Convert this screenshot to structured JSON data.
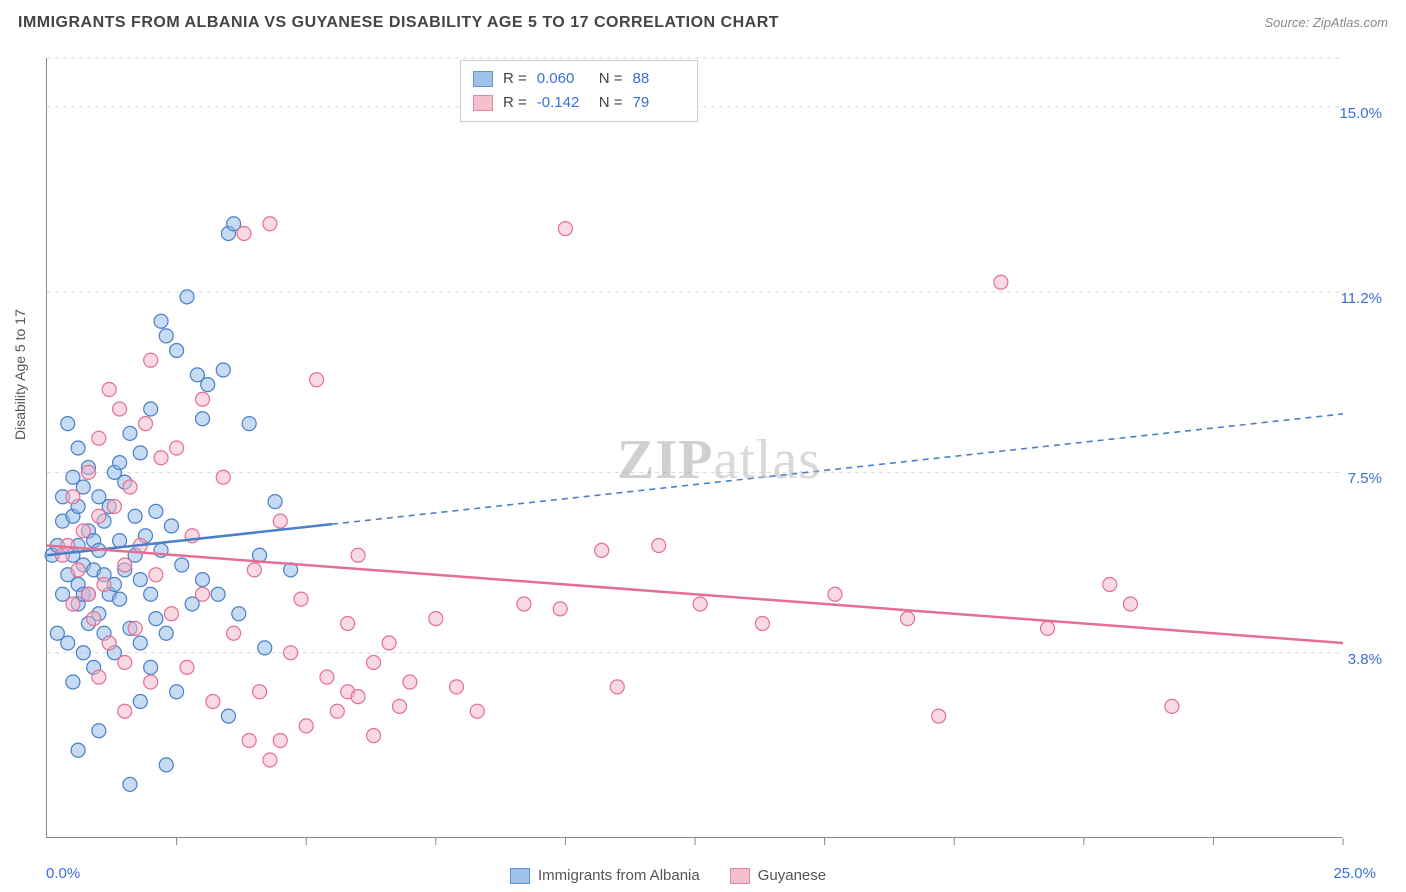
{
  "header": {
    "title": "IMMIGRANTS FROM ALBANIA VS GUYANESE DISABILITY AGE 5 TO 17 CORRELATION CHART",
    "source": "Source: ZipAtlas.com"
  },
  "watermark": {
    "zip": "ZIP",
    "atlas": "atlas"
  },
  "chart": {
    "type": "scatter",
    "background_color": "#ffffff",
    "grid_color": "#d8d8d8",
    "axis": {
      "x": {
        "min": 0.0,
        "max": 25.0,
        "label_min": "0.0%",
        "label_max": "25.0%",
        "ticks_count": 10
      },
      "y": {
        "min": 0.0,
        "max": 16.0,
        "label": "Disability Age 5 to 17",
        "gridlines": [
          {
            "value": 3.8,
            "label": "3.8%"
          },
          {
            "value": 7.5,
            "label": "7.5%"
          },
          {
            "value": 11.2,
            "label": "11.2%"
          },
          {
            "value": 15.0,
            "label": "15.0%"
          }
        ]
      }
    },
    "series": [
      {
        "id": "albania",
        "name": "Immigrants from Albania",
        "color_fill": "#8fb8e8",
        "color_stroke": "#4a7fc9",
        "fill_opacity": 0.5,
        "marker_radius": 7,
        "R": "0.060",
        "N": "88",
        "trend": {
          "y_at_xmin": 5.8,
          "y_at_xmax": 8.7,
          "solid_until_x": 5.5,
          "stroke_width": 2.5,
          "dash": "6 5"
        },
        "points": [
          [
            0.1,
            5.8
          ],
          [
            0.2,
            4.2
          ],
          [
            0.2,
            6.0
          ],
          [
            0.3,
            5.0
          ],
          [
            0.3,
            6.5
          ],
          [
            0.3,
            7.0
          ],
          [
            0.4,
            4.0
          ],
          [
            0.4,
            5.4
          ],
          [
            0.4,
            8.5
          ],
          [
            0.5,
            3.2
          ],
          [
            0.5,
            5.8
          ],
          [
            0.5,
            6.6
          ],
          [
            0.5,
            7.4
          ],
          [
            0.6,
            4.8
          ],
          [
            0.6,
            5.2
          ],
          [
            0.6,
            6.0
          ],
          [
            0.6,
            6.8
          ],
          [
            0.6,
            8.0
          ],
          [
            0.7,
            3.8
          ],
          [
            0.7,
            5.0
          ],
          [
            0.7,
            5.6
          ],
          [
            0.7,
            7.2
          ],
          [
            0.8,
            4.4
          ],
          [
            0.8,
            5.0
          ],
          [
            0.8,
            6.3
          ],
          [
            0.8,
            7.6
          ],
          [
            0.9,
            3.5
          ],
          [
            0.9,
            5.5
          ],
          [
            0.9,
            6.1
          ],
          [
            1.0,
            4.6
          ],
          [
            1.0,
            5.9
          ],
          [
            1.0,
            7.0
          ],
          [
            1.1,
            4.2
          ],
          [
            1.1,
            5.4
          ],
          [
            1.1,
            6.5
          ],
          [
            1.2,
            5.0
          ],
          [
            1.2,
            6.8
          ],
          [
            1.3,
            3.8
          ],
          [
            1.3,
            5.2
          ],
          [
            1.3,
            7.5
          ],
          [
            1.4,
            7.7
          ],
          [
            1.4,
            4.9
          ],
          [
            1.4,
            6.1
          ],
          [
            1.5,
            5.5
          ],
          [
            1.5,
            7.3
          ],
          [
            1.6,
            4.3
          ],
          [
            1.6,
            8.3
          ],
          [
            1.7,
            5.8
          ],
          [
            1.7,
            6.6
          ],
          [
            1.8,
            4.0
          ],
          [
            1.8,
            5.3
          ],
          [
            1.8,
            7.9
          ],
          [
            1.9,
            6.2
          ],
          [
            2.0,
            3.5
          ],
          [
            2.0,
            5.0
          ],
          [
            2.0,
            8.8
          ],
          [
            2.1,
            4.5
          ],
          [
            2.1,
            6.7
          ],
          [
            2.2,
            10.6
          ],
          [
            2.2,
            5.9
          ],
          [
            2.3,
            10.3
          ],
          [
            2.3,
            4.2
          ],
          [
            2.4,
            6.4
          ],
          [
            2.5,
            10.0
          ],
          [
            2.5,
            3.0
          ],
          [
            2.6,
            5.6
          ],
          [
            2.7,
            11.1
          ],
          [
            2.8,
            4.8
          ],
          [
            2.9,
            9.5
          ],
          [
            3.0,
            8.6
          ],
          [
            3.0,
            5.3
          ],
          [
            3.1,
            9.3
          ],
          [
            3.3,
            5.0
          ],
          [
            3.4,
            9.6
          ],
          [
            3.5,
            2.5
          ],
          [
            3.5,
            12.4
          ],
          [
            3.6,
            12.6
          ],
          [
            3.7,
            4.6
          ],
          [
            3.9,
            8.5
          ],
          [
            4.1,
            5.8
          ],
          [
            4.2,
            3.9
          ],
          [
            4.4,
            6.9
          ],
          [
            4.7,
            5.5
          ],
          [
            1.6,
            1.1
          ],
          [
            2.3,
            1.5
          ],
          [
            1.0,
            2.2
          ],
          [
            0.6,
            1.8
          ],
          [
            1.8,
            2.8
          ]
        ]
      },
      {
        "id": "guyanese",
        "name": "Guyanese",
        "color_fill": "#f4b6c6",
        "color_stroke": "#e56f94",
        "fill_opacity": 0.5,
        "marker_radius": 7,
        "R": "-0.142",
        "N": "79",
        "trend": {
          "y_at_xmin": 6.0,
          "y_at_xmax": 4.0,
          "solid_until_x": 25.0,
          "stroke_width": 2.5,
          "dash": ""
        },
        "points": [
          [
            0.3,
            5.8
          ],
          [
            0.4,
            6.0
          ],
          [
            0.5,
            4.8
          ],
          [
            0.5,
            7.0
          ],
          [
            0.6,
            5.5
          ],
          [
            0.7,
            6.3
          ],
          [
            0.8,
            5.0
          ],
          [
            0.8,
            7.5
          ],
          [
            0.9,
            4.5
          ],
          [
            1.0,
            6.6
          ],
          [
            1.0,
            8.2
          ],
          [
            1.1,
            5.2
          ],
          [
            1.2,
            9.2
          ],
          [
            1.2,
            4.0
          ],
          [
            1.3,
            6.8
          ],
          [
            1.4,
            8.8
          ],
          [
            1.5,
            3.6
          ],
          [
            1.5,
            5.6
          ],
          [
            1.6,
            7.2
          ],
          [
            1.7,
            4.3
          ],
          [
            1.8,
            6.0
          ],
          [
            1.9,
            8.5
          ],
          [
            2.0,
            3.2
          ],
          [
            2.0,
            9.8
          ],
          [
            2.1,
            5.4
          ],
          [
            2.2,
            7.8
          ],
          [
            2.4,
            4.6
          ],
          [
            2.5,
            8.0
          ],
          [
            2.7,
            3.5
          ],
          [
            2.8,
            6.2
          ],
          [
            3.0,
            5.0
          ],
          [
            3.0,
            9.0
          ],
          [
            3.2,
            2.8
          ],
          [
            3.4,
            7.4
          ],
          [
            3.6,
            4.2
          ],
          [
            3.8,
            12.4
          ],
          [
            3.9,
            2.0
          ],
          [
            4.0,
            5.5
          ],
          [
            4.1,
            3.0
          ],
          [
            4.3,
            12.6
          ],
          [
            4.3,
            1.6
          ],
          [
            4.5,
            6.5
          ],
          [
            4.7,
            3.8
          ],
          [
            4.9,
            4.9
          ],
          [
            5.0,
            2.3
          ],
          [
            5.2,
            9.4
          ],
          [
            5.4,
            3.3
          ],
          [
            5.6,
            2.6
          ],
          [
            5.8,
            4.4
          ],
          [
            5.8,
            3.0
          ],
          [
            6.0,
            5.8
          ],
          [
            6.0,
            2.9
          ],
          [
            6.3,
            3.6
          ],
          [
            6.3,
            2.1
          ],
          [
            6.6,
            4.0
          ],
          [
            6.8,
            2.7
          ],
          [
            7.0,
            3.2
          ],
          [
            7.5,
            4.5
          ],
          [
            7.9,
            3.1
          ],
          [
            8.3,
            2.6
          ],
          [
            9.2,
            4.8
          ],
          [
            9.9,
            4.7
          ],
          [
            10.0,
            12.5
          ],
          [
            10.7,
            5.9
          ],
          [
            11.0,
            3.1
          ],
          [
            11.8,
            6.0
          ],
          [
            12.6,
            4.8
          ],
          [
            13.8,
            4.4
          ],
          [
            15.2,
            5.0
          ],
          [
            16.6,
            4.5
          ],
          [
            17.2,
            2.5
          ],
          [
            18.4,
            11.4
          ],
          [
            19.3,
            4.3
          ],
          [
            20.5,
            5.2
          ],
          [
            20.9,
            4.8
          ],
          [
            21.7,
            2.7
          ],
          [
            1.0,
            3.3
          ],
          [
            1.5,
            2.6
          ],
          [
            4.5,
            2.0
          ]
        ]
      }
    ],
    "legend_top": {
      "R_label": "R =",
      "N_label": "N ="
    },
    "legend_bottom": {
      "items": [
        {
          "series": "albania"
        },
        {
          "series": "guyanese"
        }
      ]
    }
  }
}
